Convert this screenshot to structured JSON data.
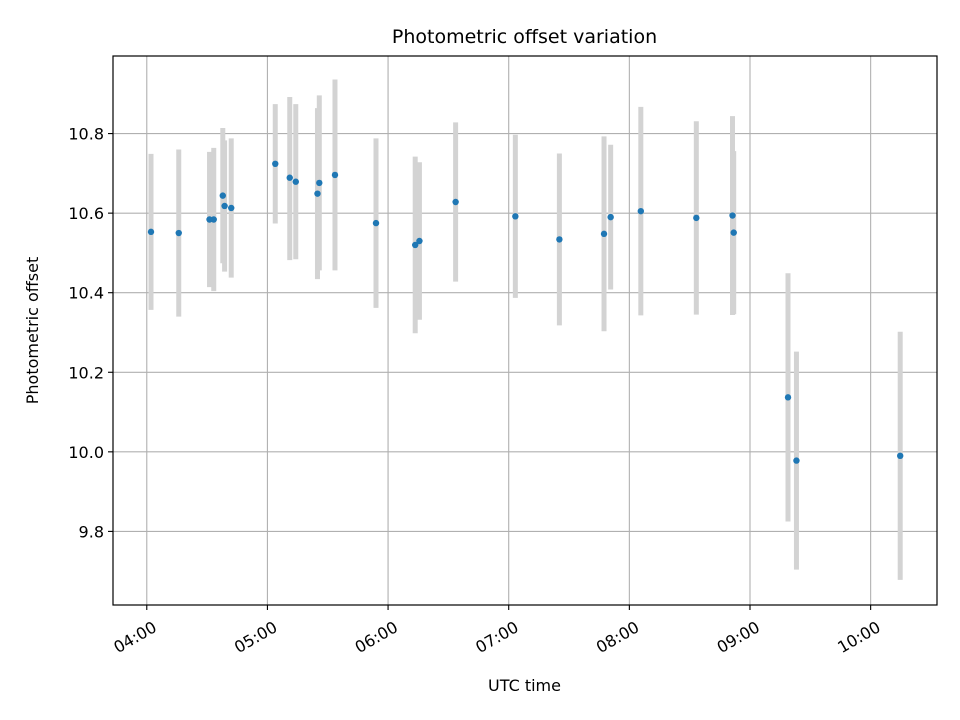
{
  "chart_data": {
    "type": "scatter",
    "title": "Photometric offset variation",
    "xlabel": "UTC time",
    "ylabel": "Photometric offset",
    "x_unit": "hours UTC",
    "xlim": [
      3.72,
      10.55
    ],
    "ylim": [
      9.615,
      10.995
    ],
    "x_ticks": [
      {
        "value": 4,
        "label": "04:00"
      },
      {
        "value": 5,
        "label": "05:00"
      },
      {
        "value": 6,
        "label": "06:00"
      },
      {
        "value": 7,
        "label": "07:00"
      },
      {
        "value": 8,
        "label": "08:00"
      },
      {
        "value": 9,
        "label": "09:00"
      },
      {
        "value": 10,
        "label": "10:00"
      }
    ],
    "y_ticks": [
      {
        "value": 9.8,
        "label": "9.8"
      },
      {
        "value": 10.0,
        "label": "10.0"
      },
      {
        "value": 10.2,
        "label": "10.2"
      },
      {
        "value": 10.4,
        "label": "10.4"
      },
      {
        "value": 10.6,
        "label": "10.6"
      },
      {
        "value": 10.8,
        "label": "10.8"
      }
    ],
    "grid": true,
    "colors": {
      "point": "#1f77b4",
      "errorbar": "#d3d3d3",
      "grid": "#b0b0b0"
    },
    "points": [
      {
        "x": 4.035,
        "y": 10.553,
        "ylow": 10.357,
        "yhigh": 10.749
      },
      {
        "x": 4.265,
        "y": 10.55,
        "ylow": 10.34,
        "yhigh": 10.76
      },
      {
        "x": 4.52,
        "y": 10.584,
        "ylow": 10.414,
        "yhigh": 10.754
      },
      {
        "x": 4.555,
        "y": 10.584,
        "ylow": 10.404,
        "yhigh": 10.764
      },
      {
        "x": 4.63,
        "y": 10.644,
        "ylow": 10.474,
        "yhigh": 10.814
      },
      {
        "x": 4.645,
        "y": 10.618,
        "ylow": 10.453,
        "yhigh": 10.783
      },
      {
        "x": 4.7,
        "y": 10.613,
        "ylow": 10.438,
        "yhigh": 10.788
      },
      {
        "x": 5.065,
        "y": 10.724,
        "ylow": 10.574,
        "yhigh": 10.874
      },
      {
        "x": 5.185,
        "y": 10.689,
        "ylow": 10.482,
        "yhigh": 10.892
      },
      {
        "x": 5.235,
        "y": 10.679,
        "ylow": 10.484,
        "yhigh": 10.874
      },
      {
        "x": 5.415,
        "y": 10.649,
        "ylow": 10.434,
        "yhigh": 10.864
      },
      {
        "x": 5.43,
        "y": 10.676,
        "ylow": 10.456,
        "yhigh": 10.896
      },
      {
        "x": 5.56,
        "y": 10.696,
        "ylow": 10.456,
        "yhigh": 10.936
      },
      {
        "x": 5.9,
        "y": 10.575,
        "ylow": 10.362,
        "yhigh": 10.788
      },
      {
        "x": 6.225,
        "y": 10.52,
        "ylow": 10.298,
        "yhigh": 10.742
      },
      {
        "x": 6.26,
        "y": 10.53,
        "ylow": 10.332,
        "yhigh": 10.728
      },
      {
        "x": 6.56,
        "y": 10.628,
        "ylow": 10.428,
        "yhigh": 10.828
      },
      {
        "x": 7.055,
        "y": 10.592,
        "ylow": 10.387,
        "yhigh": 10.797
      },
      {
        "x": 7.42,
        "y": 10.534,
        "ylow": 10.318,
        "yhigh": 10.75
      },
      {
        "x": 7.79,
        "y": 10.548,
        "ylow": 10.303,
        "yhigh": 10.793
      },
      {
        "x": 7.845,
        "y": 10.59,
        "ylow": 10.408,
        "yhigh": 10.772
      },
      {
        "x": 8.095,
        "y": 10.605,
        "ylow": 10.343,
        "yhigh": 10.867
      },
      {
        "x": 8.555,
        "y": 10.588,
        "ylow": 10.345,
        "yhigh": 10.831
      },
      {
        "x": 8.855,
        "y": 10.594,
        "ylow": 10.344,
        "yhigh": 10.844
      },
      {
        "x": 8.865,
        "y": 10.551,
        "ylow": 10.346,
        "yhigh": 10.756
      },
      {
        "x": 9.315,
        "y": 10.137,
        "ylow": 9.825,
        "yhigh": 10.449
      },
      {
        "x": 9.385,
        "y": 9.978,
        "ylow": 9.704,
        "yhigh": 10.252
      },
      {
        "x": 10.245,
        "y": 9.99,
        "ylow": 9.678,
        "yhigh": 10.302
      }
    ]
  }
}
